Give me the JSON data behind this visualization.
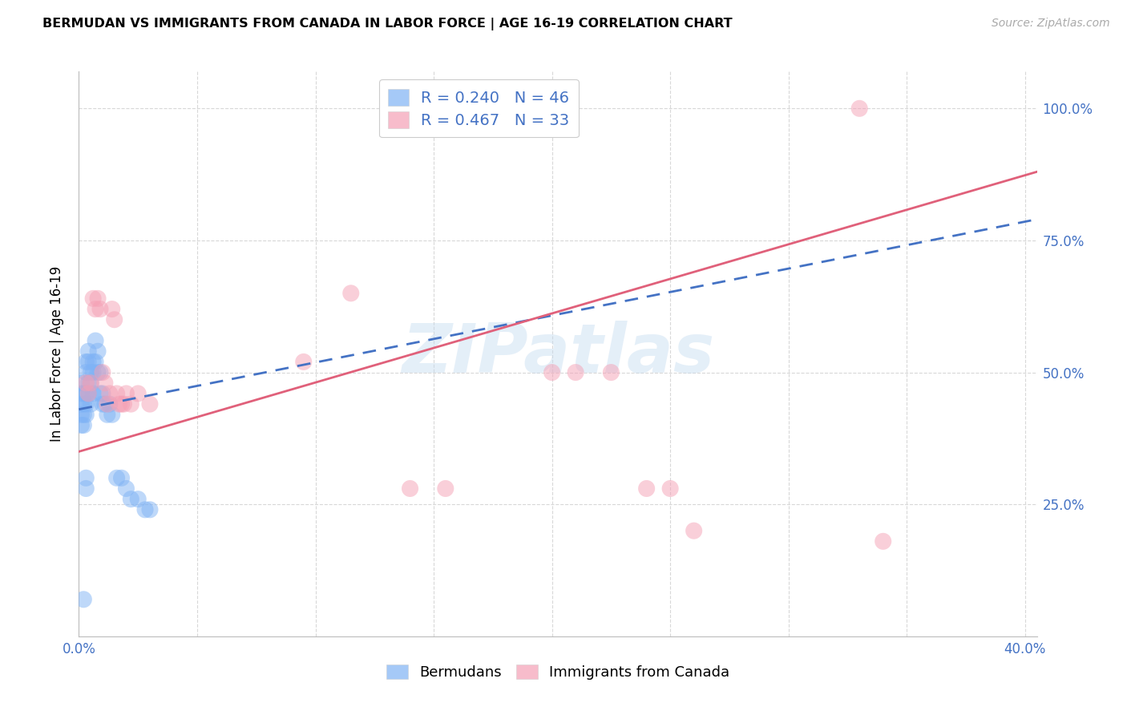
{
  "title": "BERMUDAN VS IMMIGRANTS FROM CANADA IN LABOR FORCE | AGE 16-19 CORRELATION CHART",
  "source": "Source: ZipAtlas.com",
  "ylabel": "In Labor Force | Age 16-19",
  "xlim": [
    0.0,
    0.405
  ],
  "ylim": [
    0.0,
    1.07
  ],
  "x_tick_positions": [
    0.0,
    0.05,
    0.1,
    0.15,
    0.2,
    0.25,
    0.3,
    0.35,
    0.4
  ],
  "y_tick_positions": [
    0.0,
    0.25,
    0.5,
    0.75,
    1.0
  ],
  "bermudan_R": 0.24,
  "bermudan_N": 46,
  "canada_R": 0.467,
  "canada_N": 33,
  "bermudan_color": "#7fb3f5",
  "canada_color": "#f5a0b5",
  "bermudan_line_color": "#4472c4",
  "canada_line_color": "#e0607a",
  "grid_color": "#d8d8d8",
  "label_color": "#4472c4",
  "watermark_text": "ZIPatlas",
  "bermudan_x": [
    0.001,
    0.001,
    0.001,
    0.001,
    0.001,
    0.002,
    0.002,
    0.002,
    0.002,
    0.003,
    0.003,
    0.003,
    0.003,
    0.003,
    0.004,
    0.004,
    0.004,
    0.004,
    0.005,
    0.005,
    0.005,
    0.006,
    0.006,
    0.006,
    0.007,
    0.007,
    0.008,
    0.008,
    0.009,
    0.009,
    0.01,
    0.01,
    0.011,
    0.012,
    0.013,
    0.014,
    0.016,
    0.018,
    0.02,
    0.022,
    0.025,
    0.028,
    0.03,
    0.003,
    0.003,
    0.002
  ],
  "bermudan_y": [
    0.44,
    0.46,
    0.48,
    0.42,
    0.4,
    0.44,
    0.46,
    0.42,
    0.4,
    0.5,
    0.52,
    0.46,
    0.44,
    0.42,
    0.54,
    0.52,
    0.48,
    0.46,
    0.5,
    0.48,
    0.44,
    0.52,
    0.5,
    0.46,
    0.56,
    0.52,
    0.54,
    0.5,
    0.5,
    0.46,
    0.46,
    0.44,
    0.44,
    0.42,
    0.44,
    0.42,
    0.3,
    0.3,
    0.28,
    0.26,
    0.26,
    0.24,
    0.24,
    0.3,
    0.28,
    0.07
  ],
  "canada_x": [
    0.003,
    0.004,
    0.005,
    0.006,
    0.007,
    0.008,
    0.009,
    0.01,
    0.011,
    0.012,
    0.013,
    0.014,
    0.015,
    0.016,
    0.017,
    0.018,
    0.019,
    0.02,
    0.022,
    0.025,
    0.03,
    0.095,
    0.115,
    0.14,
    0.155,
    0.2,
    0.21,
    0.225,
    0.24,
    0.25,
    0.26,
    0.33,
    0.34
  ],
  "canada_y": [
    0.48,
    0.46,
    0.48,
    0.64,
    0.62,
    0.64,
    0.62,
    0.5,
    0.48,
    0.44,
    0.46,
    0.62,
    0.6,
    0.46,
    0.44,
    0.44,
    0.44,
    0.46,
    0.44,
    0.46,
    0.44,
    0.52,
    0.65,
    0.28,
    0.28,
    0.5,
    0.5,
    0.5,
    0.28,
    0.28,
    0.2,
    1.0,
    0.18
  ],
  "bermudan_trend_x0": 0.0,
  "bermudan_trend_x1": 0.405,
  "bermudan_trend_y0": 0.43,
  "bermudan_trend_y1": 0.79,
  "canada_trend_x0": 0.0,
  "canada_trend_x1": 0.405,
  "canada_trend_y0": 0.35,
  "canada_trend_y1": 0.88
}
